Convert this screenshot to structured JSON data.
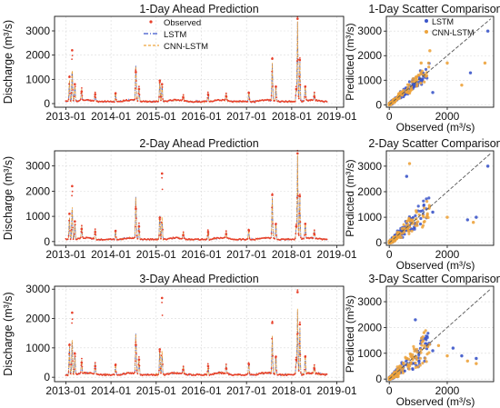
{
  "figure": {
    "background": "#ffffff"
  },
  "colors": {
    "observed": "#e8402a",
    "lstm": "#3b55c9",
    "cnn_lstm": "#eda33c",
    "grid": "#d9d9d9",
    "identity_line": "#555555"
  },
  "chart_data": [
    {
      "id": "ts1",
      "type": "line",
      "title": "1-Day Ahead Prediction",
      "xlabel": "",
      "ylabel": "Discharge (m³/s)",
      "x_ticks": [
        "2013-01",
        "2014-01",
        "2015-01",
        "2016-01",
        "2017-01",
        "2018-01",
        "2019-01"
      ],
      "x_range_years": [
        2012.75,
        2019.15
      ],
      "ylim": [
        -150,
        3600
      ],
      "y_ticks": [
        0,
        1000,
        2000,
        3000
      ],
      "grid": true,
      "legend_placement": "top-left",
      "legend": [
        {
          "key": "observed",
          "label": "Observed",
          "marker": "dot"
        },
        {
          "key": "lstm",
          "label": "LSTM",
          "marker": "dashdot"
        },
        {
          "key": "cnn_lstm",
          "label": "CNN-LSTM",
          "marker": "dashed"
        }
      ],
      "peaks": [
        {
          "t": 2013.08,
          "obs": 1100,
          "pred": 900
        },
        {
          "t": 2013.14,
          "obs": 2200,
          "pred": 1400
        },
        {
          "t": 2013.2,
          "obs": 800,
          "pred": 700
        },
        {
          "t": 2013.35,
          "obs": 500,
          "pred": 450
        },
        {
          "t": 2013.65,
          "obs": 380,
          "pred": 350
        },
        {
          "t": 2014.1,
          "obs": 420,
          "pred": 380
        },
        {
          "t": 2014.55,
          "obs": 1300,
          "pred": 1500
        },
        {
          "t": 2014.62,
          "obs": 600,
          "pred": 550
        },
        {
          "t": 2015.08,
          "obs": 950,
          "pred": 900
        },
        {
          "t": 2015.13,
          "obs": 800,
          "pred": 750
        },
        {
          "t": 2015.6,
          "obs": 250,
          "pred": 250
        },
        {
          "t": 2016.15,
          "obs": 380,
          "pred": 350
        },
        {
          "t": 2016.55,
          "obs": 300,
          "pred": 280
        },
        {
          "t": 2017.05,
          "obs": 450,
          "pred": 400
        },
        {
          "t": 2017.57,
          "obs": 1850,
          "pred": 1600
        },
        {
          "t": 2017.65,
          "obs": 700,
          "pred": 650
        },
        {
          "t": 2018.1,
          "obs": 600,
          "pred": 500
        },
        {
          "t": 2018.13,
          "obs": 3500,
          "pred": 3300
        },
        {
          "t": 2018.18,
          "obs": 1800,
          "pred": 1700
        },
        {
          "t": 2018.3,
          "obs": 700,
          "pred": 650
        },
        {
          "t": 2018.5,
          "obs": 300,
          "pred": 280
        }
      ]
    },
    {
      "id": "sc1",
      "type": "scatter",
      "title": "1-Day Scatter Comparison",
      "xlabel": "Observed (m³/s)",
      "ylabel": "Predicted (m³/s)",
      "xlim": [
        -100,
        3600
      ],
      "ylim": [
        -100,
        3600
      ],
      "x_ticks": [
        0,
        2000
      ],
      "y_ticks": [
        0,
        1000,
        2000,
        3000
      ],
      "grid": true,
      "legend_placement": "top-left",
      "legend": [
        {
          "key": "lstm",
          "label": "LSTM"
        },
        {
          "key": "cnn_lstm",
          "label": "CNN-LSTM"
        }
      ],
      "identity_line": true,
      "spread": 0.28,
      "outliers": [
        {
          "s": "cnn_lstm",
          "x": 2000,
          "y": 1700
        },
        {
          "s": "lstm",
          "x": 2800,
          "y": 1300
        },
        {
          "s": "cnn_lstm",
          "x": 1400,
          "y": 2200
        },
        {
          "s": "cnn_lstm",
          "x": 3300,
          "y": 1700
        },
        {
          "s": "lstm",
          "x": 1500,
          "y": 500
        },
        {
          "s": "cnn_lstm",
          "x": 2500,
          "y": 800
        },
        {
          "s": "lstm",
          "x": 3400,
          "y": 3000
        },
        {
          "s": "cnn_lstm",
          "x": 1100,
          "y": 1700
        }
      ]
    },
    {
      "id": "ts2",
      "type": "line",
      "title": "2-Day Ahead Prediction",
      "xlabel": "",
      "ylabel": "Discharge (m³/s)",
      "x_ticks": [
        "2013-01",
        "2014-01",
        "2015-01",
        "2016-01",
        "2017-01",
        "2018-01",
        "2019-01"
      ],
      "x_range_years": [
        2012.75,
        2019.15
      ],
      "ylim": [
        -150,
        3600
      ],
      "y_ticks": [
        0,
        1000,
        2000,
        3000
      ],
      "grid": true,
      "peaks": [
        {
          "t": 2013.08,
          "obs": 1100,
          "pred": 900
        },
        {
          "t": 2013.14,
          "obs": 2200,
          "pred": 1400
        },
        {
          "t": 2013.2,
          "obs": 800,
          "pred": 700
        },
        {
          "t": 2013.35,
          "obs": 500,
          "pred": 450
        },
        {
          "t": 2013.65,
          "obs": 380,
          "pred": 350
        },
        {
          "t": 2014.1,
          "obs": 420,
          "pred": 380
        },
        {
          "t": 2014.55,
          "obs": 1300,
          "pred": 1700
        },
        {
          "t": 2014.62,
          "obs": 600,
          "pred": 550
        },
        {
          "t": 2015.08,
          "obs": 950,
          "pred": 1100
        },
        {
          "t": 2015.13,
          "obs": 2700,
          "pred": 800
        },
        {
          "t": 2015.6,
          "obs": 250,
          "pred": 250
        },
        {
          "t": 2016.15,
          "obs": 380,
          "pred": 350
        },
        {
          "t": 2016.55,
          "obs": 300,
          "pred": 280
        },
        {
          "t": 2017.05,
          "obs": 450,
          "pred": 400
        },
        {
          "t": 2017.57,
          "obs": 1850,
          "pred": 1700
        },
        {
          "t": 2017.65,
          "obs": 700,
          "pred": 650
        },
        {
          "t": 2018.1,
          "obs": 600,
          "pred": 500
        },
        {
          "t": 2018.13,
          "obs": 3500,
          "pred": 3300
        },
        {
          "t": 2018.18,
          "obs": 1800,
          "pred": 1700
        },
        {
          "t": 2018.3,
          "obs": 700,
          "pred": 650
        },
        {
          "t": 2018.5,
          "obs": 300,
          "pred": 280
        }
      ]
    },
    {
      "id": "sc2",
      "type": "scatter",
      "title": "2-Day Scatter Comparison",
      "xlabel": "Observed (m³/s)",
      "ylabel": "Predicted (m³/s)",
      "xlim": [
        -100,
        3600
      ],
      "ylim": [
        -100,
        3600
      ],
      "x_ticks": [
        0,
        2000
      ],
      "y_ticks": [
        0,
        1000,
        2000,
        3000
      ],
      "grid": true,
      "identity_line": true,
      "spread": 0.45,
      "outliers": [
        {
          "s": "cnn_lstm",
          "x": 700,
          "y": 3100
        },
        {
          "s": "lstm",
          "x": 600,
          "y": 2600
        },
        {
          "s": "lstm",
          "x": 2700,
          "y": 900
        },
        {
          "s": "cnn_lstm",
          "x": 2900,
          "y": 800
        },
        {
          "s": "lstm",
          "x": 1500,
          "y": 1200
        },
        {
          "s": "cnn_lstm",
          "x": 1300,
          "y": 1000
        },
        {
          "s": "lstm",
          "x": 3400,
          "y": 3000
        },
        {
          "s": "cnn_lstm",
          "x": 2000,
          "y": 1000
        },
        {
          "s": "lstm",
          "x": 3000,
          "y": 1000
        }
      ]
    },
    {
      "id": "ts3",
      "type": "line",
      "title": "3-Day Ahead Prediction",
      "xlabel": "",
      "ylabel": "Discharge (m³/s)",
      "x_ticks": [
        "2013-01",
        "2014-01",
        "2015-01",
        "2016-01",
        "2017-01",
        "2018-01",
        "2019-01"
      ],
      "x_range_years": [
        2012.75,
        2019.15
      ],
      "ylim": [
        -150,
        3100
      ],
      "y_ticks": [
        0,
        1000,
        2000,
        3000
      ],
      "grid": true,
      "peaks": [
        {
          "t": 2013.08,
          "obs": 1100,
          "pred": 1000
        },
        {
          "t": 2013.14,
          "obs": 2200,
          "pred": 1300
        },
        {
          "t": 2013.2,
          "obs": 800,
          "pred": 700
        },
        {
          "t": 2013.35,
          "obs": 500,
          "pred": 450
        },
        {
          "t": 2013.65,
          "obs": 380,
          "pred": 350
        },
        {
          "t": 2014.1,
          "obs": 420,
          "pred": 380
        },
        {
          "t": 2014.55,
          "obs": 1100,
          "pred": 1400
        },
        {
          "t": 2014.62,
          "obs": 600,
          "pred": 550
        },
        {
          "t": 2015.08,
          "obs": 950,
          "pred": 900
        },
        {
          "t": 2015.13,
          "obs": 2700,
          "pred": 700
        },
        {
          "t": 2015.6,
          "obs": 250,
          "pred": 250
        },
        {
          "t": 2016.15,
          "obs": 380,
          "pred": 350
        },
        {
          "t": 2016.55,
          "obs": 300,
          "pred": 280
        },
        {
          "t": 2017.05,
          "obs": 450,
          "pred": 400
        },
        {
          "t": 2017.57,
          "obs": 1850,
          "pred": 1300
        },
        {
          "t": 2017.65,
          "obs": 700,
          "pred": 650
        },
        {
          "t": 2018.1,
          "obs": 600,
          "pred": 500
        },
        {
          "t": 2018.13,
          "obs": 2900,
          "pred": 2200
        },
        {
          "t": 2018.18,
          "obs": 1800,
          "pred": 1600
        },
        {
          "t": 2018.3,
          "obs": 700,
          "pred": 650
        },
        {
          "t": 2018.5,
          "obs": 300,
          "pred": 280
        }
      ]
    },
    {
      "id": "sc3",
      "type": "scatter",
      "title": "3-Day Scatter Comparison",
      "xlabel": "Observed (m³/s)",
      "ylabel": "Predicted (m³/s)",
      "xlim": [
        -100,
        3600
      ],
      "ylim": [
        -100,
        3600
      ],
      "x_ticks": [
        0,
        2000
      ],
      "y_ticks": [
        0,
        1000,
        2000,
        3000
      ],
      "grid": true,
      "identity_line": true,
      "spread": 0.5,
      "outliers": [
        {
          "s": "lstm",
          "x": 900,
          "y": 2300
        },
        {
          "s": "cnn_lstm",
          "x": 1200,
          "y": 1800
        },
        {
          "s": "lstm",
          "x": 1500,
          "y": 1100
        },
        {
          "s": "cnn_lstm",
          "x": 2000,
          "y": 900
        },
        {
          "s": "lstm",
          "x": 2500,
          "y": 900
        },
        {
          "s": "cnn_lstm",
          "x": 2700,
          "y": 700
        },
        {
          "s": "lstm",
          "x": 3000,
          "y": 800
        },
        {
          "s": "cnn_lstm",
          "x": 3000,
          "y": 600
        },
        {
          "s": "lstm",
          "x": 2200,
          "y": 1200
        },
        {
          "s": "cnn_lstm",
          "x": 1700,
          "y": 1300
        }
      ]
    }
  ]
}
